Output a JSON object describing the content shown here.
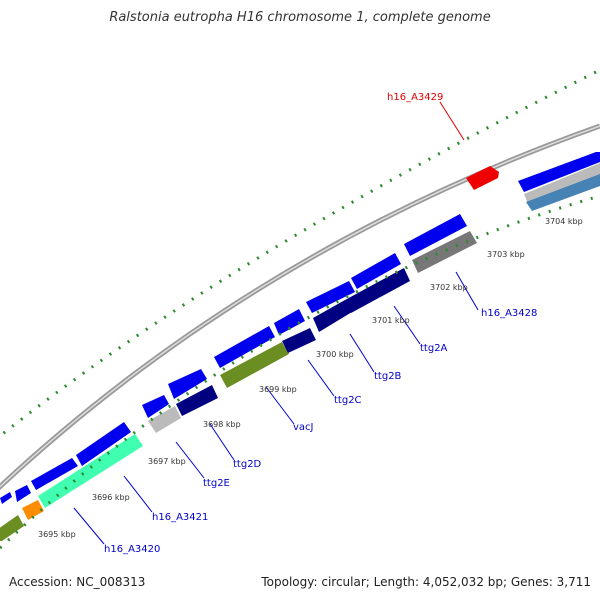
{
  "header": {
    "title": "Ralstonia eutropha H16 chromosome 1, complete genome"
  },
  "footer": {
    "accession": "Accession: NC_008313",
    "topology": "Topology: circular; Length: 4,052,032 bp; Genes: 3,711"
  },
  "colors": {
    "forward_cds": "#0000ee",
    "ttg_operon": "#000080",
    "vacJ": "#6b8e23",
    "h16_A3420": "#40ffb0",
    "small_orange": "#ff8c00",
    "h16_A3429": "#ff0000",
    "h16_A3428": "#808080",
    "label_blue": "#0000cc",
    "label_red": "#dd0000",
    "tick_green": "#2e8b2e",
    "backbone": "#999999"
  },
  "scale_labels": [
    "3695 kbp",
    "3696 kbp",
    "3697 kbp",
    "3698 kbp",
    "3699 kbp",
    "3700 kbp",
    "3701 kbp",
    "3702 kbp",
    "3703 kbp",
    "3704 kbp"
  ],
  "gene_labels": [
    "h16_A3429",
    "h16_A3428",
    "ttg2A",
    "ttg2B",
    "ttg2C",
    "vacJ",
    "ttg2D",
    "ttg2E",
    "h16_A3421",
    "h16_A3420"
  ]
}
